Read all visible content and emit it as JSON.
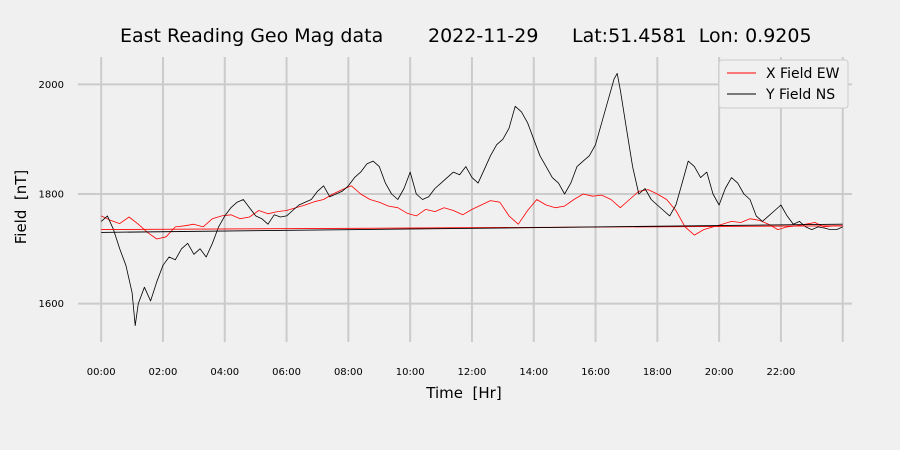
{
  "chart_data": {
    "type": "line",
    "title_parts": [
      "East Reading Geo Mag data",
      "2022-11-29",
      "Lat:51.4581  Lon: 0.9205"
    ],
    "xlabel": "Time  [Hr]",
    "ylabel": "Field  [nT]",
    "xlim": [
      -0.75,
      24.3
    ],
    "ylim": [
      1530,
      2050
    ],
    "x_ticks": [
      0,
      2,
      4,
      6,
      8,
      10,
      12,
      14,
      16,
      18,
      20,
      22
    ],
    "x_tick_labels": [
      "00:00",
      "02:00",
      "04:00",
      "06:00",
      "08:00",
      "10:00",
      "12:00",
      "14:00",
      "16:00",
      "18:00",
      "20:00",
      "22:00"
    ],
    "x_extra_gridlines": [
      24
    ],
    "y_ticks": [
      1600,
      1800,
      2000
    ],
    "y_tick_labels": [
      "1600",
      "1800",
      "2000"
    ],
    "grid": true,
    "legend_position": "top-right",
    "series": [
      {
        "name": "X Field EW",
        "color": "#ff0000",
        "points": [
          [
            0,
            1760
          ],
          [
            0.3,
            1752
          ],
          [
            0.6,
            1746
          ],
          [
            0.9,
            1758
          ],
          [
            1.2,
            1745
          ],
          [
            1.5,
            1730
          ],
          [
            1.8,
            1718
          ],
          [
            2.1,
            1722
          ],
          [
            2.4,
            1740
          ],
          [
            2.7,
            1742
          ],
          [
            3.0,
            1745
          ],
          [
            3.3,
            1740
          ],
          [
            3.6,
            1755
          ],
          [
            3.9,
            1760
          ],
          [
            4.2,
            1762
          ],
          [
            4.5,
            1755
          ],
          [
            4.8,
            1758
          ],
          [
            5.1,
            1770
          ],
          [
            5.4,
            1764
          ],
          [
            5.7,
            1768
          ],
          [
            6.0,
            1770
          ],
          [
            6.3,
            1775
          ],
          [
            6.6,
            1780
          ],
          [
            6.9,
            1786
          ],
          [
            7.2,
            1790
          ],
          [
            7.5,
            1800
          ],
          [
            7.8,
            1808
          ],
          [
            8.1,
            1815
          ],
          [
            8.4,
            1800
          ],
          [
            8.7,
            1790
          ],
          [
            9.0,
            1785
          ],
          [
            9.3,
            1778
          ],
          [
            9.6,
            1775
          ],
          [
            9.9,
            1765
          ],
          [
            10.2,
            1760
          ],
          [
            10.5,
            1772
          ],
          [
            10.8,
            1768
          ],
          [
            11.1,
            1775
          ],
          [
            11.4,
            1770
          ],
          [
            11.7,
            1762
          ],
          [
            12.0,
            1772
          ],
          [
            12.3,
            1780
          ],
          [
            12.6,
            1788
          ],
          [
            12.9,
            1785
          ],
          [
            13.2,
            1760
          ],
          [
            13.5,
            1745
          ],
          [
            13.8,
            1770
          ],
          [
            14.1,
            1790
          ],
          [
            14.4,
            1780
          ],
          [
            14.7,
            1775
          ],
          [
            15.0,
            1778
          ],
          [
            15.3,
            1790
          ],
          [
            15.6,
            1800
          ],
          [
            15.9,
            1796
          ],
          [
            16.2,
            1798
          ],
          [
            16.5,
            1790
          ],
          [
            16.8,
            1775
          ],
          [
            17.1,
            1790
          ],
          [
            17.4,
            1805
          ],
          [
            17.7,
            1808
          ],
          [
            18.0,
            1800
          ],
          [
            18.3,
            1790
          ],
          [
            18.6,
            1770
          ],
          [
            18.9,
            1740
          ],
          [
            19.2,
            1725
          ],
          [
            19.5,
            1735
          ],
          [
            19.8,
            1740
          ],
          [
            20.1,
            1745
          ],
          [
            20.4,
            1750
          ],
          [
            20.7,
            1748
          ],
          [
            21.0,
            1755
          ],
          [
            21.3,
            1752
          ],
          [
            21.6,
            1745
          ],
          [
            21.9,
            1735
          ],
          [
            22.2,
            1740
          ],
          [
            22.5,
            1742
          ],
          [
            22.8,
            1745
          ],
          [
            23.1,
            1748
          ],
          [
            23.4,
            1740
          ],
          [
            23.7,
            1742
          ],
          [
            24.0,
            1742
          ]
        ]
      },
      {
        "name": "Y Field NS",
        "color": "#000000",
        "points": [
          [
            0,
            1750
          ],
          [
            0.2,
            1760
          ],
          [
            0.4,
            1735
          ],
          [
            0.6,
            1700
          ],
          [
            0.8,
            1670
          ],
          [
            1.0,
            1620
          ],
          [
            1.1,
            1560
          ],
          [
            1.2,
            1600
          ],
          [
            1.4,
            1630
          ],
          [
            1.6,
            1605
          ],
          [
            1.8,
            1640
          ],
          [
            2.0,
            1670
          ],
          [
            2.2,
            1685
          ],
          [
            2.4,
            1680
          ],
          [
            2.6,
            1700
          ],
          [
            2.8,
            1710
          ],
          [
            3.0,
            1690
          ],
          [
            3.2,
            1700
          ],
          [
            3.4,
            1685
          ],
          [
            3.6,
            1710
          ],
          [
            3.8,
            1740
          ],
          [
            4.0,
            1760
          ],
          [
            4.2,
            1775
          ],
          [
            4.4,
            1785
          ],
          [
            4.6,
            1790
          ],
          [
            4.8,
            1775
          ],
          [
            5.0,
            1760
          ],
          [
            5.2,
            1755
          ],
          [
            5.4,
            1745
          ],
          [
            5.6,
            1762
          ],
          [
            5.8,
            1758
          ],
          [
            6.0,
            1760
          ],
          [
            6.2,
            1770
          ],
          [
            6.4,
            1780
          ],
          [
            6.6,
            1785
          ],
          [
            6.8,
            1790
          ],
          [
            7.0,
            1805
          ],
          [
            7.2,
            1815
          ],
          [
            7.4,
            1795
          ],
          [
            7.6,
            1800
          ],
          [
            7.8,
            1805
          ],
          [
            8.0,
            1815
          ],
          [
            8.2,
            1830
          ],
          [
            8.4,
            1840
          ],
          [
            8.6,
            1855
          ],
          [
            8.8,
            1860
          ],
          [
            9.0,
            1850
          ],
          [
            9.2,
            1820
          ],
          [
            9.4,
            1800
          ],
          [
            9.6,
            1790
          ],
          [
            9.8,
            1810
          ],
          [
            10.0,
            1840
          ],
          [
            10.2,
            1800
          ],
          [
            10.4,
            1790
          ],
          [
            10.6,
            1795
          ],
          [
            10.8,
            1810
          ],
          [
            11.0,
            1820
          ],
          [
            11.2,
            1830
          ],
          [
            11.4,
            1840
          ],
          [
            11.6,
            1835
          ],
          [
            11.8,
            1850
          ],
          [
            12.0,
            1830
          ],
          [
            12.2,
            1820
          ],
          [
            12.4,
            1845
          ],
          [
            12.6,
            1870
          ],
          [
            12.8,
            1890
          ],
          [
            13.0,
            1900
          ],
          [
            13.2,
            1920
          ],
          [
            13.4,
            1960
          ],
          [
            13.6,
            1950
          ],
          [
            13.8,
            1930
          ],
          [
            14.0,
            1900
          ],
          [
            14.2,
            1870
          ],
          [
            14.4,
            1850
          ],
          [
            14.6,
            1830
          ],
          [
            14.8,
            1820
          ],
          [
            15.0,
            1800
          ],
          [
            15.2,
            1820
          ],
          [
            15.4,
            1850
          ],
          [
            15.6,
            1860
          ],
          [
            15.8,
            1870
          ],
          [
            16.0,
            1890
          ],
          [
            16.2,
            1930
          ],
          [
            16.4,
            1970
          ],
          [
            16.6,
            2010
          ],
          [
            16.7,
            2020
          ],
          [
            16.8,
            1990
          ],
          [
            17.0,
            1920
          ],
          [
            17.2,
            1850
          ],
          [
            17.4,
            1800
          ],
          [
            17.6,
            1810
          ],
          [
            17.8,
            1790
          ],
          [
            18.0,
            1780
          ],
          [
            18.2,
            1770
          ],
          [
            18.4,
            1760
          ],
          [
            18.6,
            1780
          ],
          [
            18.8,
            1820
          ],
          [
            19.0,
            1860
          ],
          [
            19.2,
            1850
          ],
          [
            19.4,
            1830
          ],
          [
            19.6,
            1840
          ],
          [
            19.8,
            1800
          ],
          [
            20.0,
            1780
          ],
          [
            20.2,
            1810
          ],
          [
            20.4,
            1830
          ],
          [
            20.6,
            1820
          ],
          [
            20.8,
            1800
          ],
          [
            21.0,
            1790
          ],
          [
            21.2,
            1760
          ],
          [
            21.4,
            1750
          ],
          [
            21.6,
            1760
          ],
          [
            21.8,
            1770
          ],
          [
            22.0,
            1780
          ],
          [
            22.2,
            1760
          ],
          [
            22.4,
            1745
          ],
          [
            22.6,
            1750
          ],
          [
            22.8,
            1740
          ],
          [
            23.0,
            1735
          ],
          [
            23.2,
            1740
          ],
          [
            23.4,
            1738
          ],
          [
            23.6,
            1735
          ],
          [
            23.8,
            1735
          ],
          [
            24.0,
            1740
          ]
        ]
      },
      {
        "color": "#ff0000",
        "points": [
          [
            0,
            1735
          ],
          [
            24.0,
            1742
          ]
        ]
      },
      {
        "color": "#000000",
        "points": [
          [
            0,
            1730
          ],
          [
            24.0,
            1745
          ]
        ]
      }
    ]
  }
}
